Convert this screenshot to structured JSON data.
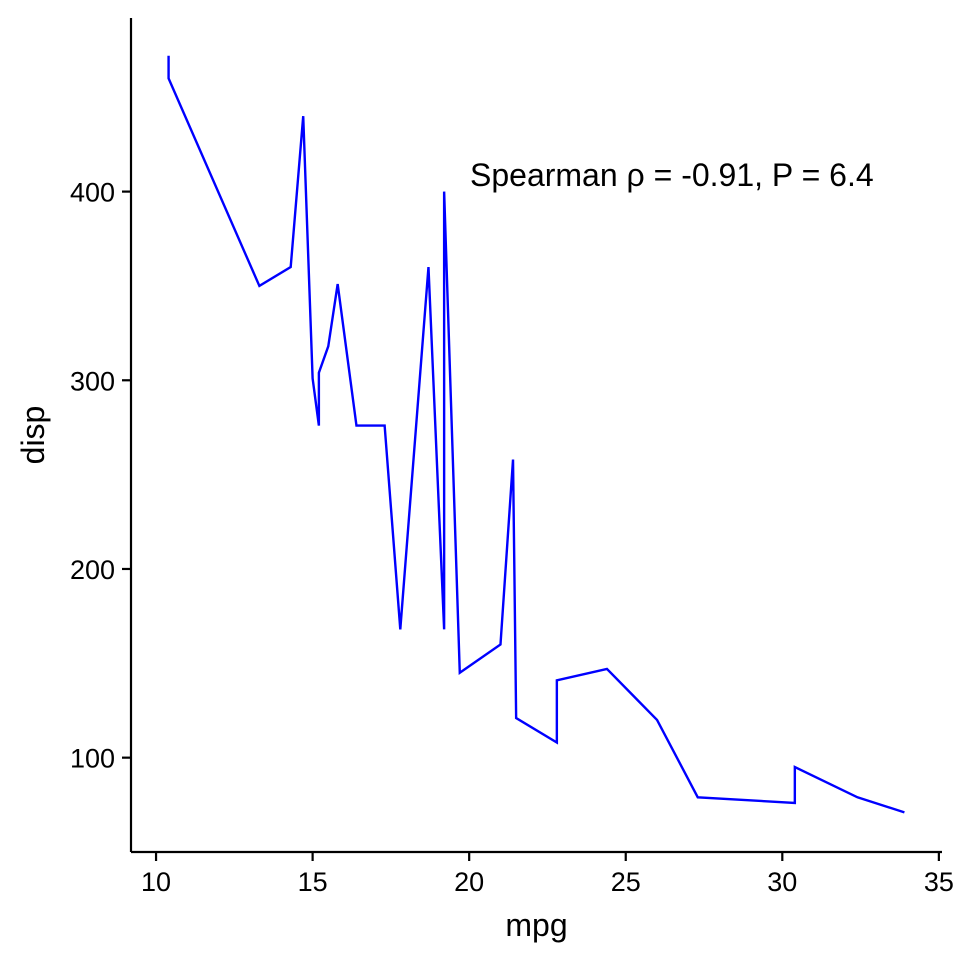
{
  "chart_data": {
    "type": "line",
    "xlabel": "mpg",
    "ylabel": "disp",
    "xlim": [
      9.2,
      35.1
    ],
    "ylim": [
      50,
      492
    ],
    "x_ticks": [
      10,
      15,
      20,
      25,
      30,
      35
    ],
    "y_ticks": [
      100,
      200,
      300,
      400
    ],
    "x_tick_labels": [
      "10",
      "15",
      "20",
      "25",
      "30",
      "35"
    ],
    "y_tick_labels": [
      "100",
      "200",
      "300",
      "400"
    ],
    "grid": false,
    "legend": "none",
    "annotation": "Spearman ρ = -0.91, P = 6.4",
    "series": [
      {
        "color": "#0000ff",
        "points": [
          [
            10.4,
            472
          ],
          [
            10.4,
            460
          ],
          [
            13.3,
            350
          ],
          [
            14.3,
            360
          ],
          [
            14.7,
            440
          ],
          [
            15.0,
            301
          ],
          [
            15.2,
            276
          ],
          [
            15.2,
            304
          ],
          [
            15.5,
            318
          ],
          [
            15.8,
            351
          ],
          [
            16.4,
            276
          ],
          [
            17.3,
            276
          ],
          [
            17.8,
            168
          ],
          [
            18.7,
            360
          ],
          [
            19.2,
            168
          ],
          [
            19.2,
            400
          ],
          [
            19.7,
            145
          ],
          [
            21.0,
            160
          ],
          [
            21.4,
            258
          ],
          [
            21.5,
            121
          ],
          [
            22.8,
            108
          ],
          [
            22.8,
            141
          ],
          [
            24.4,
            147
          ],
          [
            26.0,
            120
          ],
          [
            27.3,
            79
          ],
          [
            30.4,
            76
          ],
          [
            30.4,
            95
          ],
          [
            32.4,
            79
          ],
          [
            33.9,
            71
          ]
        ]
      }
    ]
  }
}
